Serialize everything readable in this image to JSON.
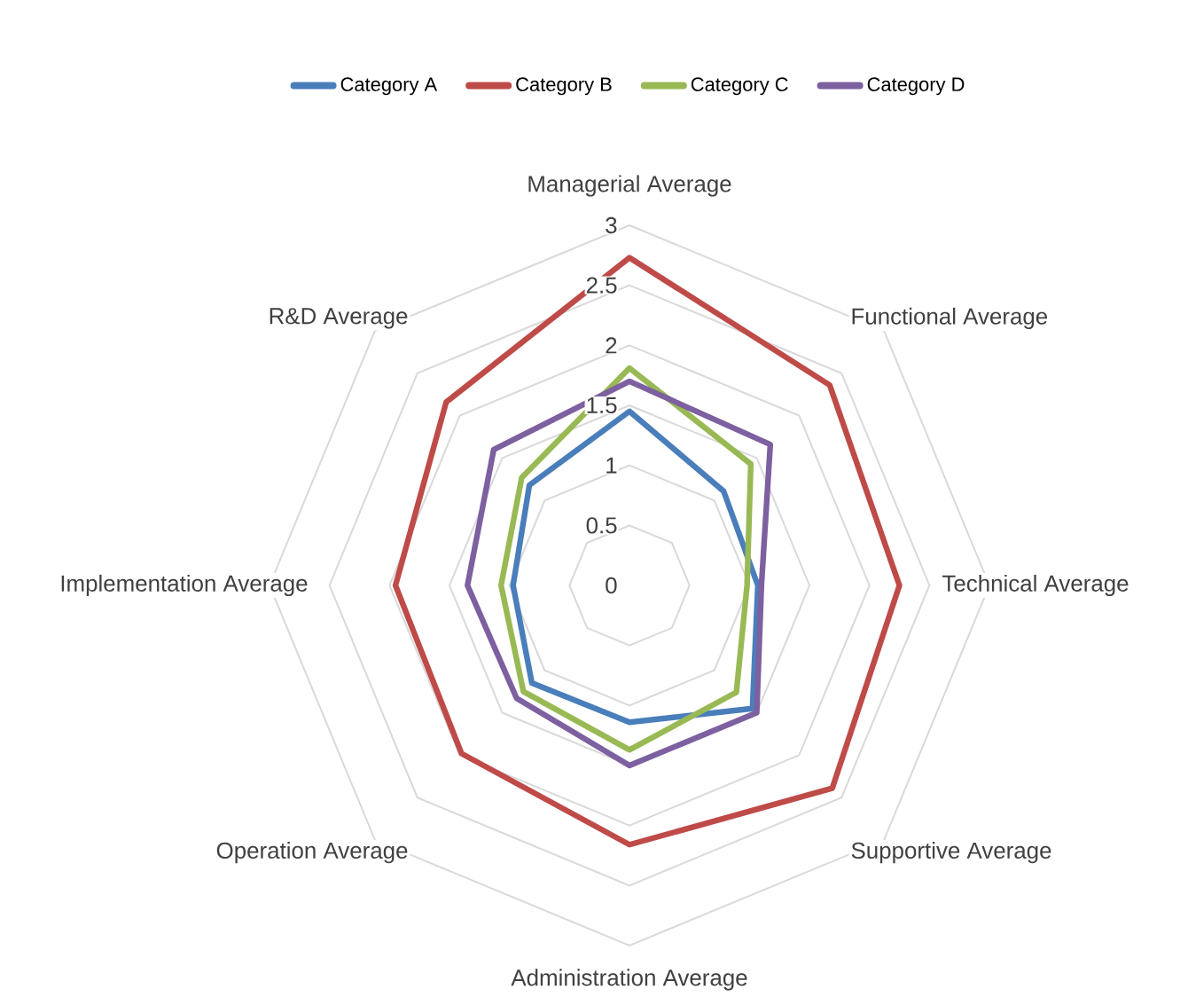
{
  "chart_data": {
    "type": "radar",
    "categories": [
      "Managerial Average",
      "Functional Average",
      "Technical Average",
      "Supportive Average",
      "Administration Average",
      "Operation Average",
      "Implementation Average",
      "R&D Average"
    ],
    "series": [
      {
        "name": "Category A",
        "color": "#4a7ebb",
        "values": [
          1.45,
          1.11,
          1.07,
          1.45,
          1.14,
          1.15,
          0.97,
          1.18
        ]
      },
      {
        "name": "Category B",
        "color": "#be4b48",
        "values": [
          2.73,
          2.36,
          2.25,
          2.39,
          2.16,
          1.98,
          1.95,
          2.16
        ]
      },
      {
        "name": "Category C",
        "color": "#98b954",
        "values": [
          1.81,
          1.43,
          0.98,
          1.26,
          1.37,
          1.25,
          1.07,
          1.27
        ]
      },
      {
        "name": "Category D",
        "color": "#7d60a0",
        "values": [
          1.7,
          1.66,
          1.1,
          1.5,
          1.5,
          1.33,
          1.35,
          1.6
        ]
      }
    ],
    "ylim": [
      0,
      3
    ],
    "yticks": [
      0,
      0.5,
      1,
      1.5,
      2,
      2.5,
      3
    ],
    "grid": true,
    "legend": "top"
  }
}
